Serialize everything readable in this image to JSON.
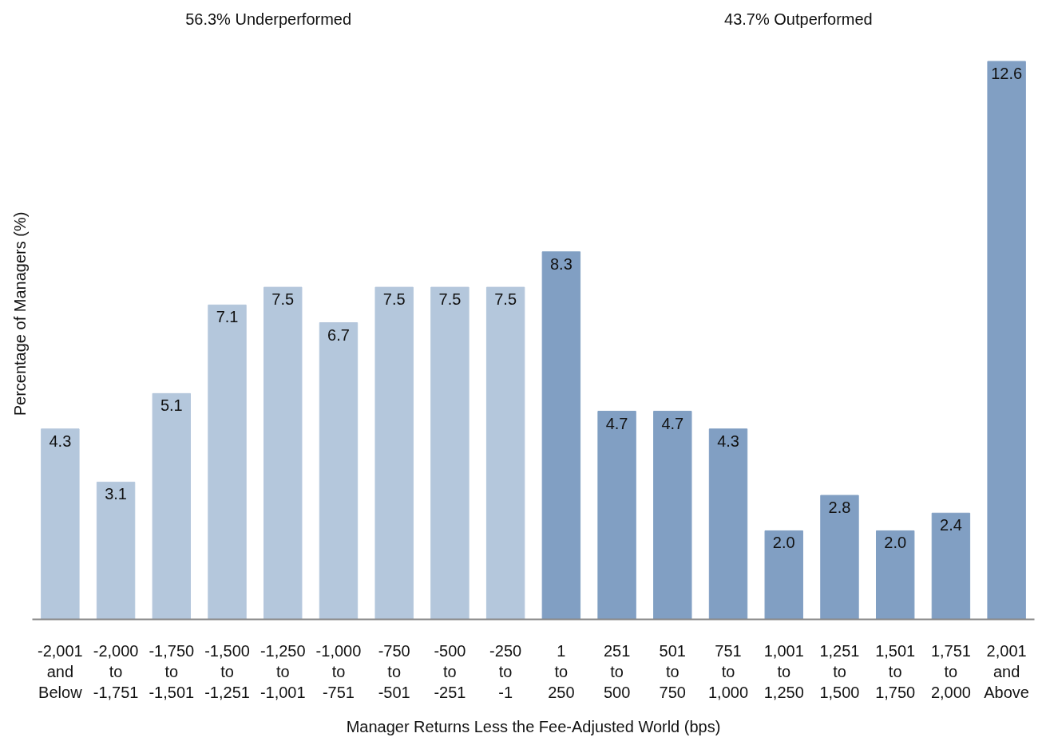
{
  "chart_data": {
    "type": "bar",
    "xlabel": "Manager Returns Less the Fee-Adjusted World (bps)",
    "ylabel": "Percentage of Managers (%)",
    "categories": [
      "-2,001\nand\nBelow",
      "-2,000\nto\n-1,751",
      "-1,750\nto\n-1,501",
      "-1,500\nto\n-1,251",
      "-1,250\nto\n-1,001",
      "-1,000\nto\n-751",
      "-750\nto\n-501",
      "-500\nto\n-251",
      "-250\nto\n-1",
      "1\nto\n250",
      "251\nto\n500",
      "501\nto\n750",
      "751\nto\n1,000",
      "1,001\nto\n1,250",
      "1,251\nto\n1,500",
      "1,501\nto\n1,750",
      "1,751\nto\n2,000",
      "2,001\nand\nAbove"
    ],
    "values": [
      4.3,
      3.1,
      5.1,
      7.1,
      7.5,
      6.7,
      7.5,
      7.5,
      7.5,
      8.3,
      4.7,
      4.7,
      4.3,
      2.0,
      2.8,
      2.0,
      2.4,
      12.6
    ],
    "value_labels": [
      "4.3",
      "3.1",
      "5.1",
      "7.1",
      "7.5",
      "6.7",
      "7.5",
      "7.5",
      "7.5",
      "8.3",
      "4.7",
      "4.7",
      "4.3",
      "2.0",
      "2.8",
      "2.0",
      "2.4",
      "12.6"
    ],
    "colors": [
      "#b4c7dc",
      "#b4c7dc",
      "#b4c7dc",
      "#b4c7dc",
      "#b4c7dc",
      "#b4c7dc",
      "#b4c7dc",
      "#b4c7dc",
      "#b4c7dc",
      "#819fc3",
      "#819fc3",
      "#819fc3",
      "#819fc3",
      "#819fc3",
      "#819fc3",
      "#819fc3",
      "#819fc3",
      "#819fc3"
    ],
    "annotations": [
      "56.3% Underperformed",
      "43.7% Outperformed"
    ],
    "grid": false,
    "tick_labels": "x"
  }
}
